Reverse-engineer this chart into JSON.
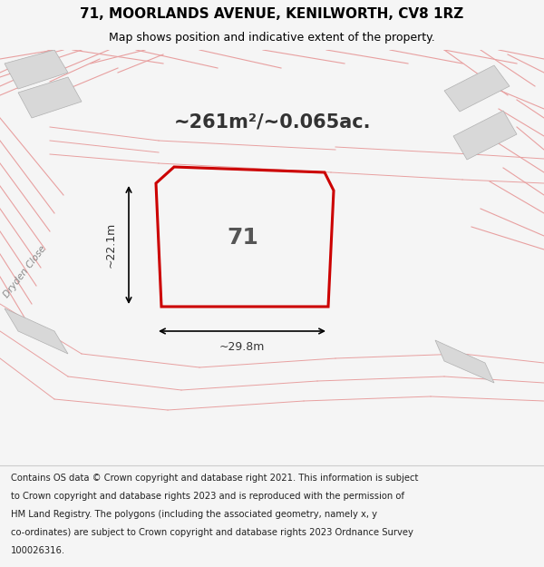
{
  "title_line1": "71, MOORLANDS AVENUE, KENILWORTH, CV8 1RZ",
  "title_line2": "Map shows position and indicative extent of the property.",
  "area_text": "~261m²/~0.065ac.",
  "label_71": "71",
  "dim_width": "~29.8m",
  "dim_height": "~22.1m",
  "street_label": "Dryden Close",
  "footer_lines": [
    "Contains OS data © Crown copyright and database right 2021. This information is subject",
    "to Crown copyright and database rights 2023 and is reproduced with the permission of",
    "HM Land Registry. The polygons (including the associated geometry, namely x, y",
    "co-ordinates) are subject to Crown copyright and database rights 2023 Ordnance Survey",
    "100026316."
  ],
  "bg_color": "#f5f5f5",
  "map_bg": "#ffffff",
  "plot_color": "#cc0000",
  "title_fontsize": 11,
  "subtitle_fontsize": 9,
  "area_fontsize": 15,
  "label_fontsize": 18,
  "footer_fontsize": 7.2,
  "dim_fontsize": 9,
  "street_fontsize": 7.5,
  "road_line_color": "#e8a0a0",
  "grey_fill": "#d8d8d8",
  "grey_edge": "#b0b0b0"
}
